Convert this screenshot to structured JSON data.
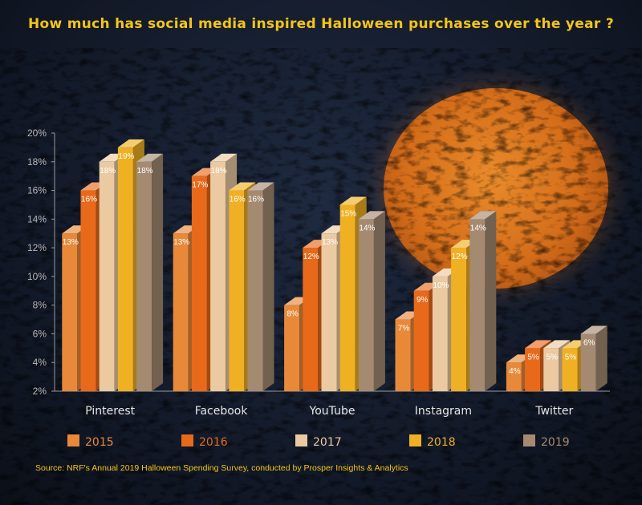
{
  "title": "How much has social media inspired Halloween purchases over the year ?",
  "source": "Source: NRF's Annual 2019 Halloween Spending Survey, conducted by Prosper Insights & Analytics",
  "chart_data": {
    "type": "bar",
    "categories": [
      "Pinterest",
      "Facebook",
      "YouTube",
      "Instagram",
      "Twitter"
    ],
    "series": [
      {
        "name": "2015",
        "color": "#e8893a",
        "values": [
          13,
          13,
          8,
          7,
          4
        ]
      },
      {
        "name": "2016",
        "color": "#e8691a",
        "values": [
          16,
          17,
          12,
          9,
          5
        ]
      },
      {
        "name": "2017",
        "color": "#ebc9a1",
        "values": [
          18,
          18,
          13,
          10,
          5
        ]
      },
      {
        "name": "2018",
        "color": "#f0b023",
        "values": [
          19,
          16,
          15,
          12,
          5
        ]
      },
      {
        "name": "2019",
        "color": "#a58a72",
        "values": [
          18,
          16,
          14,
          14,
          6
        ]
      }
    ],
    "ylim": [
      2,
      20
    ],
    "yticks": [
      "2%",
      "4%",
      "6%",
      "8%",
      "10%",
      "12%",
      "14%",
      "16%",
      "18%",
      "20%"
    ],
    "value_suffix": "%",
    "grid": false,
    "legend_position": "bottom"
  }
}
